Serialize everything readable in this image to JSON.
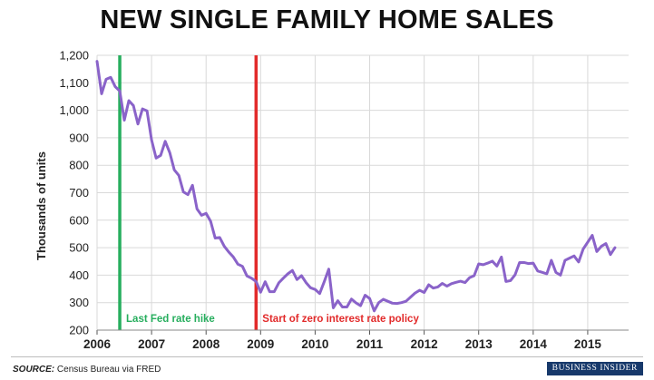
{
  "chart_data": {
    "type": "line",
    "title": "NEW SINGLE FAMILY HOME SALES",
    "ylabel": "Thousands of units",
    "xlabel": "",
    "ylim": [
      200,
      1200
    ],
    "xlim": [
      2006.0,
      2015.75
    ],
    "y_ticks": [
      "200",
      "300",
      "400",
      "500",
      "600",
      "700",
      "800",
      "900",
      "1,000",
      "1,100",
      "1,200"
    ],
    "x_ticks": [
      "2006",
      "2007",
      "2008",
      "2009",
      "2010",
      "2011",
      "2012",
      "2013",
      "2014",
      "2015"
    ],
    "grid": true,
    "series": [
      {
        "color": "#8a63c9",
        "frequency": "monthly",
        "start": "2006-01",
        "values": [
          1178,
          1060,
          1113,
          1120,
          1086,
          1070,
          964,
          1035,
          1017,
          950,
          1005,
          998,
          892,
          826,
          836,
          887,
          846,
          783,
          763,
          703,
          693,
          727,
          641,
          618,
          625,
          596,
          535,
          537,
          505,
          484,
          466,
          440,
          432,
          397,
          389,
          377,
          338,
          376,
          340,
          340,
          372,
          389,
          405,
          417,
          384,
          398,
          373,
          354,
          348,
          333,
          376,
          422,
          281,
          307,
          284,
          284,
          313,
          299,
          289,
          327,
          315,
          270,
          300,
          312,
          305,
          298,
          297,
          300,
          305,
          320,
          335,
          345,
          337,
          365,
          353,
          357,
          370,
          360,
          369,
          374,
          378,
          373,
          391,
          398,
          441,
          438,
          444,
          451,
          433,
          466,
          377,
          380,
          401,
          446,
          446,
          442,
          444,
          415,
          410,
          405,
          454,
          410,
          400,
          454,
          462,
          470,
          448,
          495,
          520,
          545,
          486,
          505,
          515,
          475,
          500
        ]
      }
    ],
    "markers": [
      {
        "x": "2006-06",
        "label": "Last Fed rate hike",
        "color": "#27ae5e"
      },
      {
        "x": "2008-12",
        "label": "Start of zero interest rate policy",
        "color": "#e22b2b"
      }
    ]
  },
  "footer": {
    "source_label": "SOURCE:",
    "source_text": "Census Bureau via FRED",
    "brand": "BUSINESS INSIDER"
  }
}
